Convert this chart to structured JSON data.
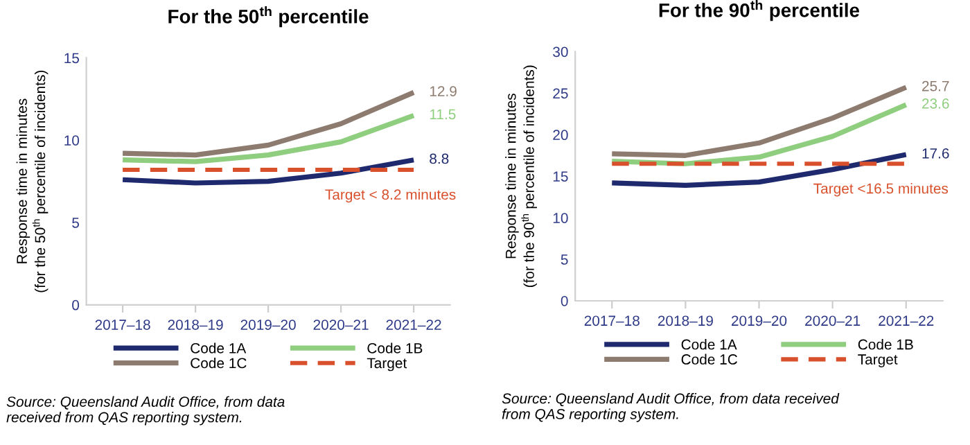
{
  "chart_data": [
    {
      "type": "line",
      "title": "For the 50$^{th}$ percentile",
      "ylabel": "Response time in minutes\n(for the 50$^{th}$ percentile of incidents)",
      "categories": [
        "2017–18",
        "2018–19",
        "2019–20",
        "2020–21",
        "2021–22"
      ],
      "series": [
        {
          "name": "Code 1A",
          "color": "#1f2a6e",
          "values": [
            7.6,
            7.4,
            7.5,
            8.0,
            8.8
          ],
          "value_labels": [
            null,
            null,
            null,
            null,
            "8.8"
          ]
        },
        {
          "name": "Code 1B",
          "color": "#8fce7e",
          "values": [
            8.8,
            8.7,
            9.1,
            9.9,
            11.5
          ],
          "value_labels": [
            null,
            null,
            null,
            null,
            "11.5"
          ]
        },
        {
          "name": "Code 1C",
          "color": "#8c7b6e",
          "values": [
            9.2,
            9.1,
            9.7,
            11.0,
            12.9
          ],
          "value_labels": [
            null,
            null,
            null,
            null,
            "12.9"
          ]
        },
        {
          "name": "Target",
          "color": "#d9512c",
          "line_style": "dashed",
          "values": [
            8.2,
            8.2,
            8.2,
            8.2,
            8.2
          ]
        }
      ],
      "ylim": [
        0,
        15
      ],
      "yticks": [
        0,
        5,
        10,
        15
      ],
      "grid": false,
      "legend": "bottom",
      "marker": "none",
      "annotations": [
        {
          "text": "Target < 8.2 minutes",
          "x": "2021–22",
          "y": 8.2
        },
        "Source: Queensland Audit Office, from data\nreceived from QAS reporting system."
      ]
    },
    {
      "type": "line",
      "title": "For the 90$^{th}$ percentile",
      "ylabel": "Response time in minutes\n(for the 90$^{th}$ percentile of incidents)",
      "categories": [
        "2017–18",
        "2018–19",
        "2019–20",
        "2020–21",
        "2021–22"
      ],
      "series": [
        {
          "name": "Code 1A",
          "color": "#1f2a6e",
          "values": [
            14.2,
            13.9,
            14.3,
            15.8,
            17.6
          ],
          "value_labels": [
            null,
            null,
            null,
            null,
            "17.6"
          ]
        },
        {
          "name": "Code 1B",
          "color": "#8fce7e",
          "values": [
            16.8,
            16.5,
            17.3,
            19.8,
            23.6
          ],
          "value_labels": [
            null,
            null,
            null,
            null,
            "23.6"
          ]
        },
        {
          "name": "Code 1C",
          "color": "#8c7b6e",
          "values": [
            17.7,
            17.5,
            19.0,
            22.0,
            25.7
          ],
          "value_labels": [
            null,
            null,
            null,
            null,
            "25.7"
          ]
        },
        {
          "name": "Target",
          "color": "#d9512c",
          "line_style": "dashed",
          "values": [
            16.5,
            16.5,
            16.5,
            16.5,
            16.5
          ]
        }
      ],
      "ylim": [
        0,
        30
      ],
      "yticks": [
        0,
        5,
        10,
        15,
        20,
        25,
        30
      ],
      "grid": false,
      "legend": "bottom",
      "marker": "none",
      "annotations": [
        {
          "text": "Target <16.5 minutes",
          "x": "2021–22",
          "y": 16.5
        },
        "Source: Queensland Audit Office, from data received\nfrom QAS reporting system."
      ]
    }
  ]
}
